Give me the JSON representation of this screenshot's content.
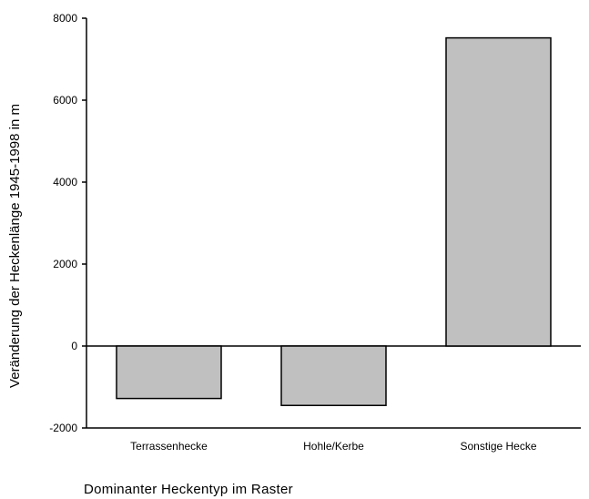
{
  "chart_data": {
    "type": "bar",
    "title": "",
    "xlabel": "Dominanter Heckentyp im Raster",
    "ylabel": "Veränderung der Heckenlänge 1945-1998 in m",
    "categories": [
      "Terrassenhecke",
      "Hohle/Kerbe",
      "Sonstige Hecke"
    ],
    "values": [
      -1280,
      -1450,
      7520
    ],
    "ylim": [
      -2000,
      8000
    ],
    "yticks": [
      -2000,
      0,
      2000,
      4000,
      6000,
      8000
    ],
    "ytick_labels": [
      "-2000",
      "0",
      "2000",
      "4000",
      "6000",
      "8000"
    ],
    "grid": false,
    "legend": "none",
    "bar_color": "#c0c0c0",
    "edge_color": "#000000"
  }
}
